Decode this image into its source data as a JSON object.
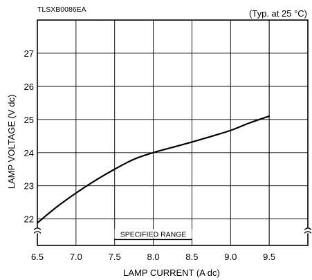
{
  "header": {
    "code": "TLSXB0086EA",
    "condition": "(Typ. at 25 °C)"
  },
  "chart_data": {
    "type": "line",
    "xlabel": "LAMP CURRENT (A dc)",
    "ylabel": "LAMP VOLTAGE (V dc)",
    "xlim": [
      6.5,
      10.0
    ],
    "ylim": [
      21.2,
      28.0
    ],
    "x_ticks": [
      6.5,
      7.0,
      7.5,
      8.0,
      8.5,
      9.0,
      9.5
    ],
    "x_tick_labels": [
      "6.5",
      "7.0",
      "7.5",
      "8.0",
      "8.5",
      "9.0",
      "9.5"
    ],
    "y_ticks": [
      22,
      23,
      24,
      25,
      26,
      27
    ],
    "y_tick_labels": [
      "22",
      "23",
      "24",
      "25",
      "26",
      "27"
    ],
    "grid": true,
    "axis_break": "y",
    "series": [
      {
        "x": [
          6.5,
          6.75,
          7.0,
          7.25,
          7.5,
          7.75,
          8.0,
          8.25,
          8.5,
          8.75,
          9.0,
          9.25,
          9.5
        ],
        "y": [
          21.88,
          22.36,
          22.78,
          23.16,
          23.5,
          23.8,
          24.0,
          24.16,
          24.32,
          24.49,
          24.67,
          24.9,
          25.1
        ]
      }
    ],
    "annotation": {
      "text": "SPECIFIED RANGE",
      "x_range": [
        7.5,
        8.5
      ]
    }
  }
}
